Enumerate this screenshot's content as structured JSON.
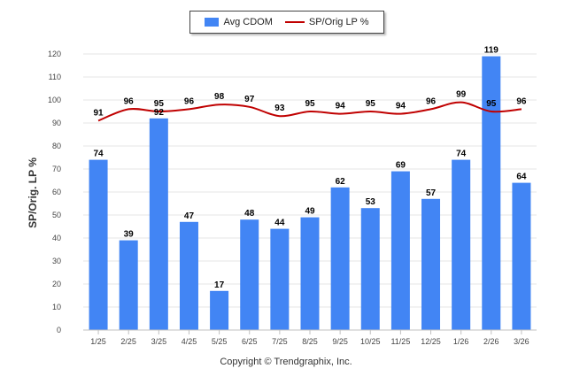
{
  "chart_data": {
    "type": "bar",
    "title": "",
    "xlabel": "",
    "ylabel": "SP/Orig. LP %",
    "ylim": [
      0,
      120
    ],
    "yticks": [
      0,
      10,
      20,
      30,
      40,
      50,
      60,
      70,
      80,
      90,
      100,
      110,
      120
    ],
    "grid": true,
    "legend_position": "top-center",
    "categories": [
      "1/25",
      "2/25",
      "3/25",
      "4/25",
      "5/25",
      "6/25",
      "7/25",
      "8/25",
      "9/25",
      "10/25",
      "11/25",
      "12/25",
      "1/26",
      "2/26",
      "3/26"
    ],
    "series": [
      {
        "name": "Avg CDOM",
        "type": "bar",
        "color": "#4285f4",
        "values": [
          74,
          39,
          92,
          47,
          17,
          48,
          44,
          49,
          62,
          53,
          69,
          57,
          74,
          119,
          64
        ]
      },
      {
        "name": "SP/Orig LP %",
        "type": "line",
        "color": "#c00000",
        "values": [
          91,
          96,
          95,
          96,
          98,
          97,
          93,
          95,
          94,
          95,
          94,
          96,
          99,
          95,
          96
        ]
      }
    ]
  },
  "footer": {
    "copyright": "Copyright © Trendgraphix, Inc."
  }
}
